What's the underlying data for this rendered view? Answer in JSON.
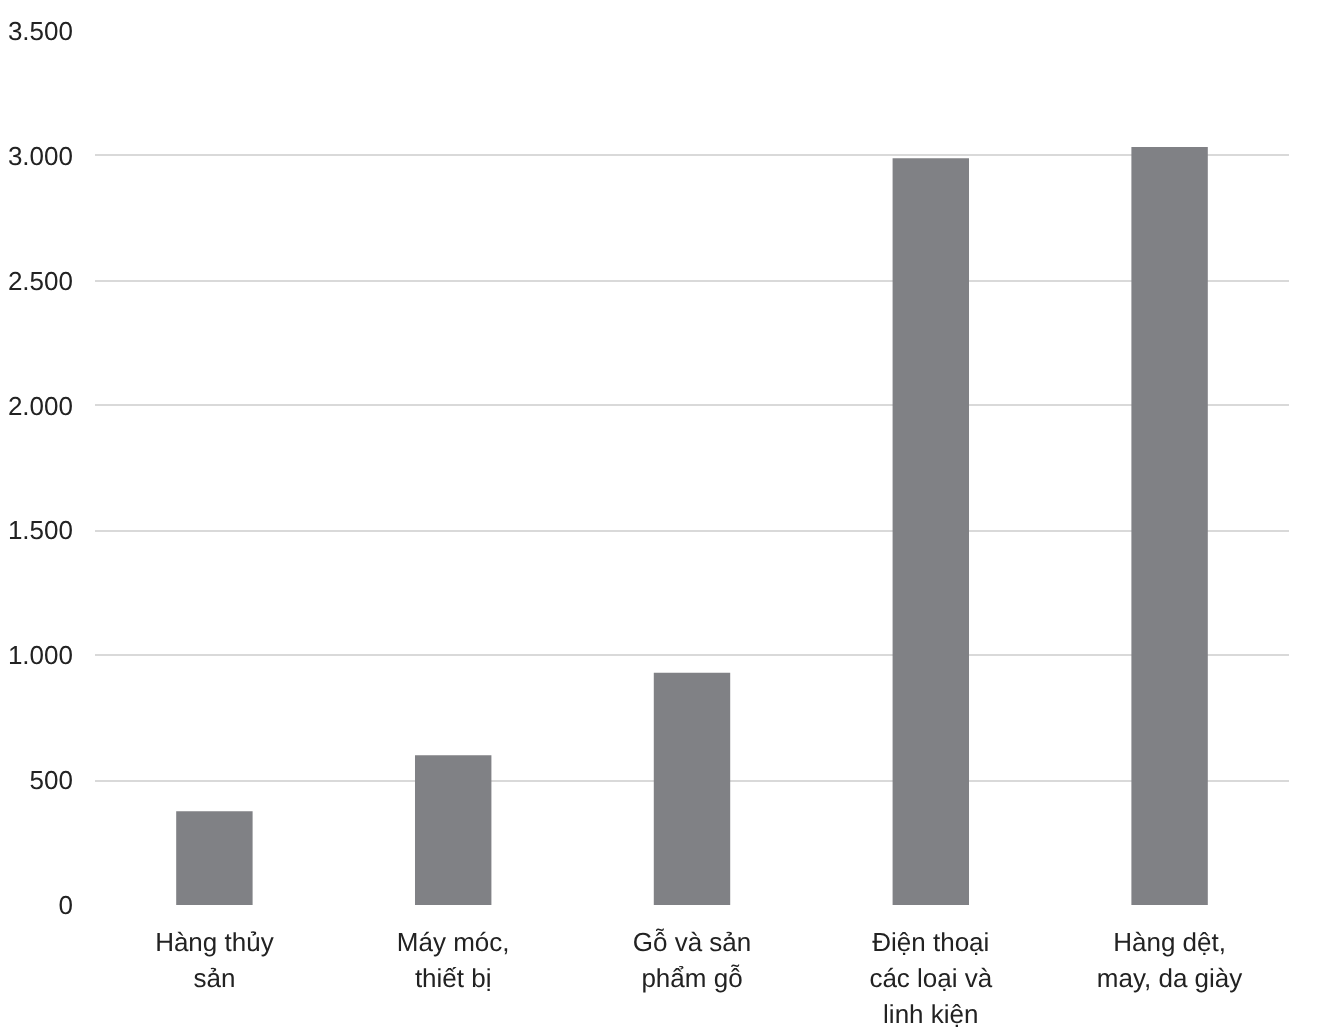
{
  "chart_data": {
    "type": "bar",
    "categories": [
      "Hàng thủy\nsản",
      "Máy móc,\nthiết bị",
      "Gỗ và sản\nphẩm gỗ",
      "Điện thoại\ncác loại và\nlinh kiện",
      "Hàng dệt,\nmay, da giày"
    ],
    "values": [
      375,
      600,
      930,
      2990,
      3035
    ],
    "color": "#808185",
    "ylim": [
      0,
      3500
    ],
    "yticks": [
      {
        "value": 0,
        "label": "0"
      },
      {
        "value": 500,
        "label": "500"
      },
      {
        "value": 1000,
        "label": "1.000"
      },
      {
        "value": 1500,
        "label": "1.500"
      },
      {
        "value": 2000,
        "label": "2.000"
      },
      {
        "value": 2500,
        "label": "2.500"
      },
      {
        "value": 3000,
        "label": "3.000"
      },
      {
        "value": 3500,
        "label": "3.500"
      }
    ],
    "grid": "y"
  }
}
